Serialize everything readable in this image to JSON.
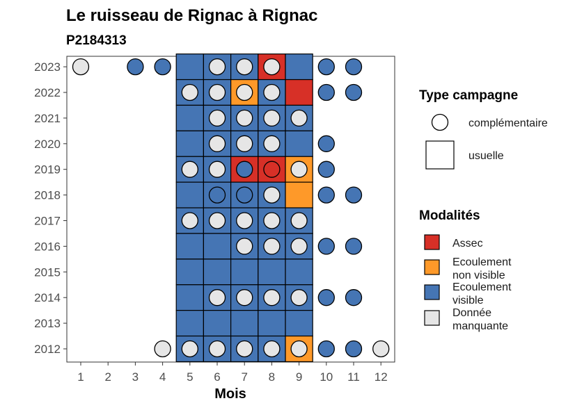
{
  "chart_data": {
    "type": "heatmap",
    "title": "Le ruisseau de Rignac à Rignac",
    "subtitle": "P2184313",
    "xlabel": "Mois",
    "ylabel": "",
    "x_ticks": [
      1,
      2,
      3,
      4,
      5,
      6,
      7,
      8,
      9,
      10,
      11,
      12
    ],
    "y_ticks": [
      2012,
      2013,
      2014,
      2015,
      2016,
      2017,
      2018,
      2019,
      2020,
      2021,
      2022,
      2023
    ],
    "colors": {
      "Assec": "#d73027",
      "Ecoulement non visible": "#fe9929",
      "Ecoulement visible": "#4575b4",
      "Donnée manquante": "#e6e6e6"
    },
    "legend_type": {
      "title": "Type campagne",
      "items": [
        {
          "key": "complementaire",
          "label": "complémentaire",
          "shape": "circle"
        },
        {
          "key": "usuelle",
          "label": "usuelle",
          "shape": "square"
        }
      ]
    },
    "legend_modalites": {
      "title": "Modalités",
      "items": [
        {
          "key": "Assec",
          "lines": [
            "Assec"
          ]
        },
        {
          "key": "Ecoulement non visible",
          "lines": [
            "Ecoulement",
            "non visible"
          ]
        },
        {
          "key": "Ecoulement visible",
          "lines": [
            "Ecoulement",
            "visible"
          ]
        },
        {
          "key": "Donnée manquante",
          "lines": [
            "Donnée",
            "manquante"
          ]
        }
      ]
    },
    "usuelle": [
      {
        "year": 2023,
        "month": 5,
        "status": "Ecoulement visible"
      },
      {
        "year": 2023,
        "month": 6,
        "status": "Ecoulement visible"
      },
      {
        "year": 2023,
        "month": 7,
        "status": "Ecoulement visible"
      },
      {
        "year": 2023,
        "month": 8,
        "status": "Assec"
      },
      {
        "year": 2023,
        "month": 9,
        "status": "Ecoulement visible"
      },
      {
        "year": 2022,
        "month": 5,
        "status": "Ecoulement visible"
      },
      {
        "year": 2022,
        "month": 6,
        "status": "Ecoulement visible"
      },
      {
        "year": 2022,
        "month": 7,
        "status": "Ecoulement non visible"
      },
      {
        "year": 2022,
        "month": 8,
        "status": "Ecoulement visible"
      },
      {
        "year": 2022,
        "month": 9,
        "status": "Assec"
      },
      {
        "year": 2021,
        "month": 5,
        "status": "Ecoulement visible"
      },
      {
        "year": 2021,
        "month": 6,
        "status": "Ecoulement visible"
      },
      {
        "year": 2021,
        "month": 7,
        "status": "Ecoulement visible"
      },
      {
        "year": 2021,
        "month": 8,
        "status": "Ecoulement visible"
      },
      {
        "year": 2021,
        "month": 9,
        "status": "Ecoulement visible"
      },
      {
        "year": 2020,
        "month": 5,
        "status": "Ecoulement visible"
      },
      {
        "year": 2020,
        "month": 6,
        "status": "Ecoulement visible"
      },
      {
        "year": 2020,
        "month": 7,
        "status": "Ecoulement visible"
      },
      {
        "year": 2020,
        "month": 8,
        "status": "Ecoulement visible"
      },
      {
        "year": 2020,
        "month": 9,
        "status": "Ecoulement visible"
      },
      {
        "year": 2019,
        "month": 5,
        "status": "Ecoulement visible"
      },
      {
        "year": 2019,
        "month": 6,
        "status": "Ecoulement visible"
      },
      {
        "year": 2019,
        "month": 7,
        "status": "Assec"
      },
      {
        "year": 2019,
        "month": 8,
        "status": "Assec"
      },
      {
        "year": 2019,
        "month": 9,
        "status": "Ecoulement non visible"
      },
      {
        "year": 2018,
        "month": 5,
        "status": "Ecoulement visible"
      },
      {
        "year": 2018,
        "month": 6,
        "status": "Ecoulement visible"
      },
      {
        "year": 2018,
        "month": 7,
        "status": "Ecoulement visible"
      },
      {
        "year": 2018,
        "month": 8,
        "status": "Ecoulement visible"
      },
      {
        "year": 2018,
        "month": 9,
        "status": "Ecoulement non visible"
      },
      {
        "year": 2017,
        "month": 5,
        "status": "Ecoulement visible"
      },
      {
        "year": 2017,
        "month": 6,
        "status": "Ecoulement visible"
      },
      {
        "year": 2017,
        "month": 7,
        "status": "Ecoulement visible"
      },
      {
        "year": 2017,
        "month": 8,
        "status": "Ecoulement visible"
      },
      {
        "year": 2017,
        "month": 9,
        "status": "Ecoulement visible"
      },
      {
        "year": 2016,
        "month": 5,
        "status": "Ecoulement visible"
      },
      {
        "year": 2016,
        "month": 6,
        "status": "Ecoulement visible"
      },
      {
        "year": 2016,
        "month": 7,
        "status": "Ecoulement visible"
      },
      {
        "year": 2016,
        "month": 8,
        "status": "Ecoulement visible"
      },
      {
        "year": 2016,
        "month": 9,
        "status": "Ecoulement visible"
      },
      {
        "year": 2015,
        "month": 5,
        "status": "Ecoulement visible"
      },
      {
        "year": 2015,
        "month": 6,
        "status": "Ecoulement visible"
      },
      {
        "year": 2015,
        "month": 7,
        "status": "Ecoulement visible"
      },
      {
        "year": 2015,
        "month": 8,
        "status": "Ecoulement visible"
      },
      {
        "year": 2015,
        "month": 9,
        "status": "Ecoulement visible"
      },
      {
        "year": 2014,
        "month": 5,
        "status": "Ecoulement visible"
      },
      {
        "year": 2014,
        "month": 6,
        "status": "Ecoulement visible"
      },
      {
        "year": 2014,
        "month": 7,
        "status": "Ecoulement visible"
      },
      {
        "year": 2014,
        "month": 8,
        "status": "Ecoulement visible"
      },
      {
        "year": 2014,
        "month": 9,
        "status": "Ecoulement visible"
      },
      {
        "year": 2013,
        "month": 5,
        "status": "Ecoulement visible"
      },
      {
        "year": 2013,
        "month": 6,
        "status": "Ecoulement visible"
      },
      {
        "year": 2013,
        "month": 7,
        "status": "Ecoulement visible"
      },
      {
        "year": 2013,
        "month": 8,
        "status": "Ecoulement visible"
      },
      {
        "year": 2013,
        "month": 9,
        "status": "Ecoulement visible"
      },
      {
        "year": 2012,
        "month": 5,
        "status": "Ecoulement visible"
      },
      {
        "year": 2012,
        "month": 6,
        "status": "Ecoulement visible"
      },
      {
        "year": 2012,
        "month": 7,
        "status": "Ecoulement visible"
      },
      {
        "year": 2012,
        "month": 8,
        "status": "Ecoulement visible"
      },
      {
        "year": 2012,
        "month": 9,
        "status": "Ecoulement non visible"
      }
    ],
    "complementaire": [
      {
        "year": 2023,
        "month": 1,
        "status": "Donnée manquante"
      },
      {
        "year": 2023,
        "month": 3,
        "status": "Ecoulement visible"
      },
      {
        "year": 2023,
        "month": 4,
        "status": "Ecoulement visible"
      },
      {
        "year": 2023,
        "month": 6,
        "status": "Donnée manquante"
      },
      {
        "year": 2023,
        "month": 7,
        "status": "Donnée manquante"
      },
      {
        "year": 2023,
        "month": 8,
        "status": "Donnée manquante"
      },
      {
        "year": 2023,
        "month": 10,
        "status": "Ecoulement visible"
      },
      {
        "year": 2023,
        "month": 11,
        "status": "Ecoulement visible"
      },
      {
        "year": 2022,
        "month": 5,
        "status": "Donnée manquante"
      },
      {
        "year": 2022,
        "month": 6,
        "status": "Donnée manquante"
      },
      {
        "year": 2022,
        "month": 7,
        "status": "Donnée manquante"
      },
      {
        "year": 2022,
        "month": 8,
        "status": "Donnée manquante"
      },
      {
        "year": 2022,
        "month": 10,
        "status": "Ecoulement visible"
      },
      {
        "year": 2022,
        "month": 11,
        "status": "Ecoulement visible"
      },
      {
        "year": 2021,
        "month": 6,
        "status": "Donnée manquante"
      },
      {
        "year": 2021,
        "month": 7,
        "status": "Donnée manquante"
      },
      {
        "year": 2021,
        "month": 8,
        "status": "Donnée manquante"
      },
      {
        "year": 2021,
        "month": 9,
        "status": "Donnée manquante"
      },
      {
        "year": 2020,
        "month": 6,
        "status": "Donnée manquante"
      },
      {
        "year": 2020,
        "month": 7,
        "status": "Donnée manquante"
      },
      {
        "year": 2020,
        "month": 8,
        "status": "Donnée manquante"
      },
      {
        "year": 2020,
        "month": 10,
        "status": "Ecoulement visible"
      },
      {
        "year": 2019,
        "month": 5,
        "status": "Donnée manquante"
      },
      {
        "year": 2019,
        "month": 6,
        "status": "Donnée manquante"
      },
      {
        "year": 2019,
        "month": 7,
        "status": "Ecoulement visible"
      },
      {
        "year": 2019,
        "month": 8,
        "status": "Assec"
      },
      {
        "year": 2019,
        "month": 9,
        "status": "Donnée manquante"
      },
      {
        "year": 2019,
        "month": 10,
        "status": "Ecoulement visible"
      },
      {
        "year": 2018,
        "month": 6,
        "status": "Ecoulement visible"
      },
      {
        "year": 2018,
        "month": 7,
        "status": "Ecoulement visible"
      },
      {
        "year": 2018,
        "month": 8,
        "status": "Donnée manquante"
      },
      {
        "year": 2018,
        "month": 10,
        "status": "Ecoulement visible"
      },
      {
        "year": 2018,
        "month": 11,
        "status": "Ecoulement visible"
      },
      {
        "year": 2017,
        "month": 5,
        "status": "Donnée manquante"
      },
      {
        "year": 2017,
        "month": 6,
        "status": "Donnée manquante"
      },
      {
        "year": 2017,
        "month": 7,
        "status": "Donnée manquante"
      },
      {
        "year": 2017,
        "month": 8,
        "status": "Donnée manquante"
      },
      {
        "year": 2017,
        "month": 9,
        "status": "Donnée manquante"
      },
      {
        "year": 2016,
        "month": 7,
        "status": "Donnée manquante"
      },
      {
        "year": 2016,
        "month": 8,
        "status": "Donnée manquante"
      },
      {
        "year": 2016,
        "month": 9,
        "status": "Donnée manquante"
      },
      {
        "year": 2016,
        "month": 10,
        "status": "Ecoulement visible"
      },
      {
        "year": 2016,
        "month": 11,
        "status": "Ecoulement visible"
      },
      {
        "year": 2014,
        "month": 6,
        "status": "Donnée manquante"
      },
      {
        "year": 2014,
        "month": 7,
        "status": "Donnée manquante"
      },
      {
        "year": 2014,
        "month": 8,
        "status": "Donnée manquante"
      },
      {
        "year": 2014,
        "month": 9,
        "status": "Donnée manquante"
      },
      {
        "year": 2014,
        "month": 10,
        "status": "Ecoulement visible"
      },
      {
        "year": 2014,
        "month": 11,
        "status": "Ecoulement visible"
      },
      {
        "year": 2012,
        "month": 4,
        "status": "Donnée manquante"
      },
      {
        "year": 2012,
        "month": 5,
        "status": "Donnée manquante"
      },
      {
        "year": 2012,
        "month": 6,
        "status": "Donnée manquante"
      },
      {
        "year": 2012,
        "month": 7,
        "status": "Donnée manquante"
      },
      {
        "year": 2012,
        "month": 8,
        "status": "Donnée manquante"
      },
      {
        "year": 2012,
        "month": 9,
        "status": "Donnée manquante"
      },
      {
        "year": 2012,
        "month": 10,
        "status": "Ecoulement visible"
      },
      {
        "year": 2012,
        "month": 11,
        "status": "Ecoulement visible"
      },
      {
        "year": 2012,
        "month": 12,
        "status": "Donnée manquante"
      }
    ]
  }
}
